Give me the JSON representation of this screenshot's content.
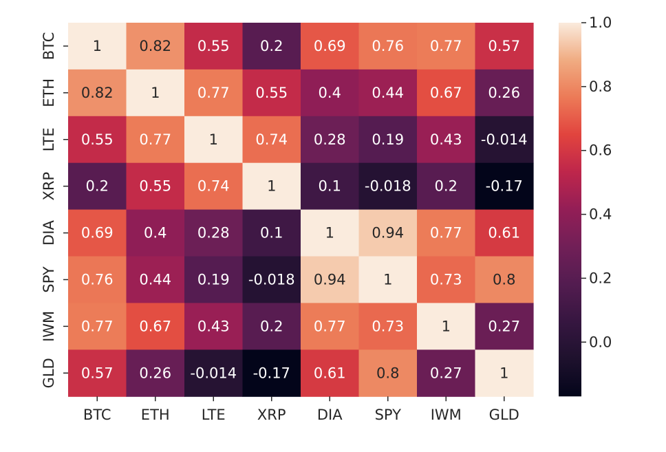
{
  "chart_data": {
    "type": "heatmap",
    "title": "",
    "xlabel": "",
    "ylabel": "",
    "row_labels": [
      "BTC",
      "ETH",
      "LTE",
      "XRP",
      "DIA",
      "SPY",
      "IWM",
      "GLD"
    ],
    "col_labels": [
      "BTC",
      "ETH",
      "LTE",
      "XRP",
      "DIA",
      "SPY",
      "IWM",
      "GLD"
    ],
    "values": [
      [
        1,
        0.82,
        0.55,
        0.2,
        0.69,
        0.76,
        0.77,
        0.57
      ],
      [
        0.82,
        1,
        0.77,
        0.55,
        0.4,
        0.44,
        0.67,
        0.26
      ],
      [
        0.55,
        0.77,
        1,
        0.74,
        0.28,
        0.19,
        0.43,
        -0.014
      ],
      [
        0.2,
        0.55,
        0.74,
        1,
        0.1,
        -0.018,
        0.2,
        -0.17
      ],
      [
        0.69,
        0.4,
        0.28,
        0.1,
        1,
        0.94,
        0.77,
        0.61
      ],
      [
        0.76,
        0.44,
        0.19,
        -0.018,
        0.94,
        1,
        0.73,
        0.8
      ],
      [
        0.77,
        0.67,
        0.43,
        0.2,
        0.77,
        0.73,
        1,
        0.27
      ],
      [
        0.57,
        0.26,
        -0.014,
        -0.17,
        0.61,
        0.8,
        0.27,
        1
      ]
    ],
    "value_range": [
      -0.17,
      1.0
    ],
    "colorbar": {
      "ticks": [
        0.0,
        0.2,
        0.4,
        0.6,
        0.8,
        1.0
      ],
      "tick_labels": [
        "0.0",
        "0.2",
        "0.4",
        "0.6",
        "0.8",
        "1.0"
      ]
    },
    "colormap": "rocket",
    "annotations": true,
    "grid": false
  }
}
